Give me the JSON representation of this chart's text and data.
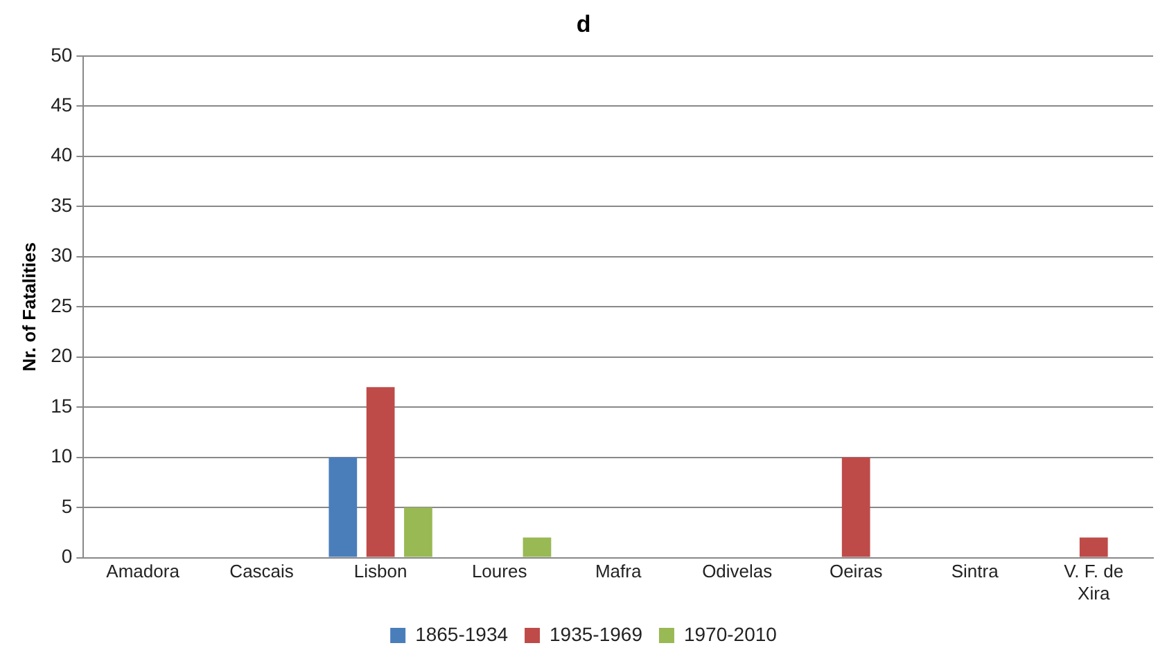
{
  "chart_data": {
    "type": "bar",
    "title": "d",
    "ylabel": "Nr. of Fatalities",
    "categories": [
      "Amadora",
      "Cascais",
      "Lisbon",
      "Loures",
      "Mafra",
      "Odivelas",
      "Oeiras",
      "Sintra",
      "V. F. de Xira"
    ],
    "series": [
      {
        "name": "1865-1934",
        "color": "#4a7ebb",
        "values": [
          0,
          0,
          10,
          0,
          0,
          0,
          0,
          0,
          0
        ]
      },
      {
        "name": "1935-1969",
        "color": "#be4b48",
        "values": [
          0,
          0,
          17,
          0,
          0,
          0,
          10,
          0,
          2
        ]
      },
      {
        "name": "1970-2010",
        "color": "#98b954",
        "values": [
          0,
          0,
          5,
          2,
          0,
          0,
          0,
          0,
          0
        ]
      }
    ],
    "ylim": [
      0,
      50
    ],
    "yticks": [
      0,
      5,
      10,
      15,
      20,
      25,
      30,
      35,
      40,
      45,
      50
    ],
    "grid": "y",
    "legend": "bottom"
  }
}
